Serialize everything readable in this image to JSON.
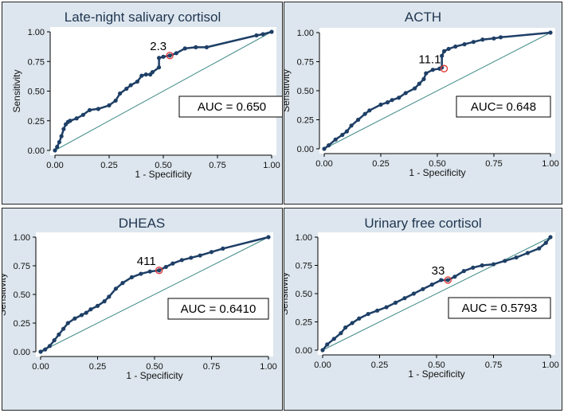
{
  "colors": {
    "curve": "#1e3f66",
    "reference": "#3f8a86",
    "cutoff": "#e03c3c",
    "panel_bg": "#dde6ee",
    "plot_bg": "#ffffff"
  },
  "chart_data": [
    {
      "type": "line",
      "title": "Late-night salivary cortisol",
      "xlabel": "1 - Specificity",
      "ylabel": "Sensitivity",
      "xlim": [
        0,
        1
      ],
      "ylim": [
        0,
        1
      ],
      "xticks": [
        "0.00",
        "0.25",
        "0.50",
        "0.75",
        "1.00"
      ],
      "yticks": [
        "0.00",
        "0.25",
        "0.50",
        "0.75",
        "1.00"
      ],
      "auc_label": "AUC = 0.650",
      "cutoff": {
        "label": "2.3",
        "x": 0.53,
        "y": 0.8
      },
      "series": [
        {
          "name": "ROC",
          "x": [
            0,
            0.01,
            0.02,
            0.03,
            0.04,
            0.05,
            0.06,
            0.07,
            0.1,
            0.13,
            0.16,
            0.2,
            0.25,
            0.28,
            0.3,
            0.33,
            0.35,
            0.38,
            0.4,
            0.42,
            0.44,
            0.45,
            0.48,
            0.48,
            0.5,
            0.53,
            0.56,
            0.6,
            0.65,
            0.7,
            0.93,
            0.96,
            1.0
          ],
          "y": [
            0,
            0.03,
            0.07,
            0.12,
            0.18,
            0.22,
            0.24,
            0.25,
            0.27,
            0.3,
            0.34,
            0.35,
            0.38,
            0.42,
            0.48,
            0.52,
            0.55,
            0.58,
            0.63,
            0.64,
            0.64,
            0.66,
            0.7,
            0.78,
            0.79,
            0.8,
            0.82,
            0.86,
            0.87,
            0.87,
            0.97,
            0.98,
            1.0
          ]
        }
      ]
    },
    {
      "type": "line",
      "title": "ACTH",
      "xlabel": "1 - Specificity",
      "ylabel": "Sensitivity",
      "xlim": [
        0,
        1
      ],
      "ylim": [
        0,
        1
      ],
      "xticks": [
        "0.00",
        "0.25",
        "0.50",
        "0.75",
        "1.00"
      ],
      "yticks": [
        "0.00",
        "0.25",
        "0.50",
        "0.75",
        "1.00"
      ],
      "auc_label": "AUC= 0.648",
      "cutoff": {
        "label": "11.1",
        "x": 0.53,
        "y": 0.69
      },
      "series": [
        {
          "name": "ROC",
          "x": [
            0,
            0.02,
            0.05,
            0.08,
            0.1,
            0.12,
            0.15,
            0.18,
            0.2,
            0.25,
            0.28,
            0.3,
            0.33,
            0.36,
            0.4,
            0.42,
            0.44,
            0.45,
            0.48,
            0.51,
            0.52,
            0.52,
            0.53,
            0.55,
            0.58,
            0.62,
            0.66,
            0.7,
            0.75,
            0.78,
            1.0
          ],
          "y": [
            0,
            0.03,
            0.08,
            0.12,
            0.15,
            0.2,
            0.25,
            0.3,
            0.33,
            0.38,
            0.4,
            0.42,
            0.44,
            0.48,
            0.52,
            0.56,
            0.6,
            0.65,
            0.68,
            0.69,
            0.7,
            0.8,
            0.84,
            0.86,
            0.88,
            0.9,
            0.92,
            0.94,
            0.95,
            0.96,
            1.0
          ]
        }
      ]
    },
    {
      "type": "line",
      "title": "DHEAS",
      "xlabel": "1 - Specificity",
      "ylabel": "Sensitivity",
      "xlim": [
        0,
        1
      ],
      "ylim": [
        0,
        1
      ],
      "xticks": [
        "0.00",
        "0.25",
        "0.50",
        "0.75",
        "1.00"
      ],
      "yticks": [
        "0.00",
        "0.25",
        "0.50",
        "0.75",
        "1.00"
      ],
      "auc_label": "AUC = 0.6410",
      "cutoff": {
        "label": "411",
        "x": 0.52,
        "y": 0.71
      },
      "series": [
        {
          "name": "ROC",
          "x": [
            0,
            0.02,
            0.04,
            0.06,
            0.08,
            0.1,
            0.12,
            0.15,
            0.18,
            0.2,
            0.22,
            0.25,
            0.28,
            0.3,
            0.33,
            0.36,
            0.4,
            0.44,
            0.48,
            0.52,
            0.55,
            0.58,
            0.62,
            0.66,
            0.7,
            0.75,
            0.8,
            1.0
          ],
          "y": [
            0,
            0.02,
            0.05,
            0.1,
            0.15,
            0.2,
            0.25,
            0.29,
            0.32,
            0.34,
            0.37,
            0.4,
            0.44,
            0.48,
            0.55,
            0.6,
            0.65,
            0.68,
            0.7,
            0.71,
            0.74,
            0.77,
            0.8,
            0.82,
            0.84,
            0.87,
            0.9,
            1.0
          ]
        }
      ]
    },
    {
      "type": "line",
      "title": "Urinary free cortisol",
      "xlabel": "1 - Specificity",
      "ylabel": "Sensitivity",
      "xlim": [
        0,
        1
      ],
      "ylim": [
        0,
        1
      ],
      "xticks": [
        "0.00",
        "0.25",
        "0.50",
        "0.75",
        "1.00"
      ],
      "yticks": [
        "0.00",
        "0.25",
        "0.50",
        "0.75",
        "1.00"
      ],
      "auc_label": "AUC = 0.5793",
      "cutoff": {
        "label": "33",
        "x": 0.55,
        "y": 0.62
      },
      "series": [
        {
          "name": "ROC",
          "x": [
            0,
            0.02,
            0.05,
            0.08,
            0.1,
            0.13,
            0.16,
            0.2,
            0.24,
            0.28,
            0.32,
            0.36,
            0.4,
            0.44,
            0.48,
            0.52,
            0.55,
            0.58,
            0.62,
            0.66,
            0.7,
            0.75,
            0.8,
            0.85,
            0.9,
            0.95,
            0.98,
            1.0
          ],
          "y": [
            0,
            0.05,
            0.1,
            0.15,
            0.2,
            0.24,
            0.28,
            0.32,
            0.35,
            0.38,
            0.42,
            0.46,
            0.5,
            0.54,
            0.58,
            0.62,
            0.62,
            0.65,
            0.7,
            0.73,
            0.75,
            0.76,
            0.79,
            0.82,
            0.86,
            0.9,
            0.95,
            1.0
          ]
        }
      ]
    }
  ]
}
